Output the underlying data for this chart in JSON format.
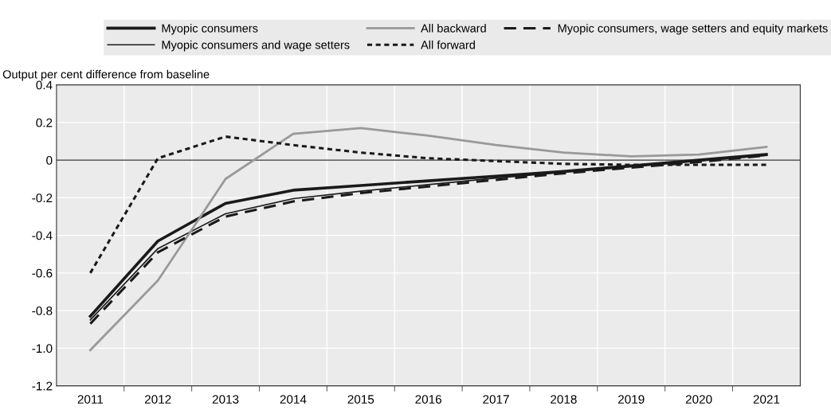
{
  "chart_data": {
    "type": "line",
    "ylabel": "Output per cent difference from baseline",
    "categories": [
      "2011",
      "2012",
      "2013",
      "2014",
      "2015",
      "2016",
      "2017",
      "2018",
      "2019",
      "2020",
      "2021"
    ],
    "series": [
      {
        "name": "Myopic consumers",
        "color": "#1a1a1a",
        "line_style": "solid",
        "values": [
          -0.83,
          -0.43,
          -0.23,
          -0.16,
          -0.135,
          -0.11,
          -0.085,
          -0.06,
          -0.03,
          0.0,
          0.03
        ]
      },
      {
        "name": "Myopic consumers and wage setters",
        "color": "#1a1a1a",
        "line_style": "solid",
        "values": [
          -0.85,
          -0.47,
          -0.285,
          -0.205,
          -0.165,
          -0.13,
          -0.095,
          -0.065,
          -0.035,
          -0.005,
          0.025
        ]
      },
      {
        "name": "All backward",
        "color": "#999999",
        "line_style": "solid",
        "values": [
          -1.01,
          -0.64,
          -0.1,
          0.14,
          0.17,
          0.13,
          0.08,
          0.04,
          0.02,
          0.03,
          0.07
        ]
      },
      {
        "name": "All forward",
        "color": "#1a1a1a",
        "line_style": "dotted",
        "values": [
          -0.6,
          0.01,
          0.125,
          0.08,
          0.04,
          0.01,
          -0.005,
          -0.02,
          -0.025,
          -0.025,
          -0.025
        ]
      },
      {
        "name": "Myopic consumers, wage setters and equity markets",
        "color": "#1a1a1a",
        "line_style": "dashed",
        "values": [
          -0.87,
          -0.49,
          -0.3,
          -0.22,
          -0.175,
          -0.14,
          -0.105,
          -0.07,
          -0.04,
          -0.01,
          0.025
        ]
      }
    ],
    "ylim": [
      -1.2,
      0.4
    ],
    "yticks": [
      {
        "value": -1.2,
        "label": "-1.2"
      },
      {
        "value": -1.0,
        "label": "-1.0"
      },
      {
        "value": -0.8,
        "label": "-0.8"
      },
      {
        "value": -0.6,
        "label": "-0.6"
      },
      {
        "value": -0.4,
        "label": "-0.4"
      },
      {
        "value": -0.2,
        "label": "-0.2"
      },
      0,
      0.2,
      0.4
    ],
    "ref_lines": [
      {
        "axis": "y",
        "value": 0,
        "color": "#333333"
      }
    ],
    "grid": true,
    "legend": "top",
    "marker": "none"
  }
}
